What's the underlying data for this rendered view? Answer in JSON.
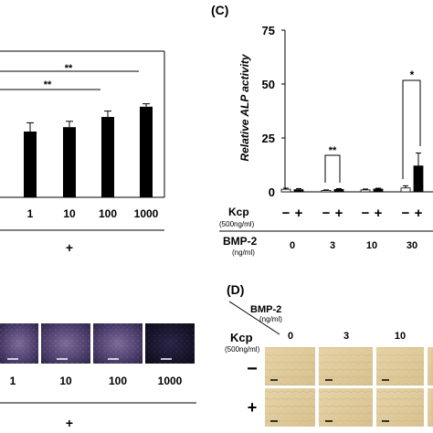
{
  "panel_b": {
    "x_labels": [
      "1",
      "10",
      "100",
      "1000"
    ],
    "bmp_sign": "+",
    "sig": [
      "**",
      "**"
    ]
  },
  "panel_c": {
    "label": "(C)",
    "ylabel": "Relative ALP activity",
    "row1_label": "Kcp",
    "row1_sub": "(500ng/ml)",
    "row2_label": "BMP-2",
    "row2_sub": "(ng/ml)",
    "signs": [
      "−",
      "+"
    ],
    "sig": [
      "**",
      "*"
    ]
  },
  "panel_d": {
    "label": "(D)",
    "bmp_label": "BMP-2",
    "bmp_sub": "(ng/ml)",
    "kcp_label": "Kcp",
    "kcp_sub": "(500ng/ml)",
    "col_labels": [
      "0",
      "3",
      "10"
    ],
    "row_labels": [
      "−",
      "+"
    ]
  },
  "panel_bottom_left": {
    "x_labels": [
      "1",
      "10",
      "100",
      "1000"
    ],
    "bmp_sign": "+"
  },
  "chart_data": [
    {
      "type": "bar",
      "panel": "B",
      "categories": [
        "1",
        "10",
        "100",
        "1000"
      ],
      "values": [
        45,
        48,
        55,
        62
      ],
      "errors": [
        6,
        4,
        4,
        2
      ],
      "ylim": [
        0,
        100
      ],
      "color": "#000000"
    },
    {
      "type": "bar",
      "panel": "C",
      "title": "",
      "ylabel": "Relative ALP activity",
      "categories": [
        "0",
        "3",
        "10",
        "30"
      ],
      "ylim": [
        0,
        75
      ],
      "yticks": [
        0,
        25,
        50,
        75
      ],
      "series": [
        {
          "name": "−",
          "values": [
            1.2,
            0.6,
            0.9,
            1.8
          ],
          "errors": [
            0.5,
            0.3,
            0.4,
            1.0
          ],
          "color": "#ffffff"
        },
        {
          "name": "+",
          "values": [
            1.0,
            1.1,
            1.3,
            12.0
          ],
          "errors": [
            0.5,
            0.4,
            0.4,
            6.0
          ],
          "color": "#000000"
        }
      ]
    }
  ]
}
